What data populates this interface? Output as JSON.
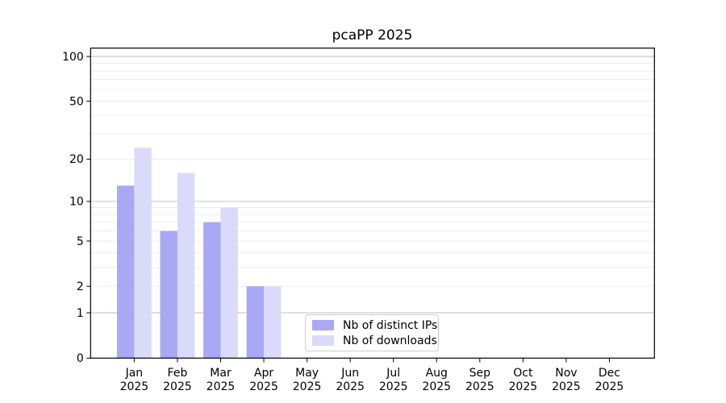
{
  "chart_data": {
    "type": "bar",
    "title": "pcaPP 2025",
    "categories": [
      "Jan",
      "Feb",
      "Mar",
      "Apr",
      "May",
      "Jun",
      "Jul",
      "Aug",
      "Sep",
      "Oct",
      "Nov",
      "Dec"
    ],
    "year_label": "2025",
    "series": [
      {
        "name": "Nb of distinct IPs",
        "color": "#a8a8f4",
        "values": [
          13,
          6,
          7,
          2,
          0,
          0,
          0,
          0,
          0,
          0,
          0,
          0
        ]
      },
      {
        "name": "Nb of downloads",
        "color": "#dadafa",
        "values": [
          24,
          16,
          9,
          2,
          0,
          0,
          0,
          0,
          0,
          0,
          0,
          0
        ]
      }
    ],
    "yscale": "log1p",
    "ylim": [
      0,
      100
    ],
    "yticks": [
      0,
      1,
      2,
      5,
      10,
      20,
      50,
      100
    ],
    "major_gridlines": [
      1,
      10,
      100
    ],
    "minor_gridlines": [
      2,
      3,
      4,
      5,
      6,
      7,
      8,
      9,
      20,
      30,
      40,
      50,
      60,
      70,
      80,
      90
    ],
    "legend_position": "lower center",
    "grid": true,
    "colors": {
      "background": "#ffffff",
      "spine": "#000000",
      "tick_text": "#000000",
      "major_grid": "#c3c3c3",
      "minor_grid": "#ebebeb"
    }
  }
}
